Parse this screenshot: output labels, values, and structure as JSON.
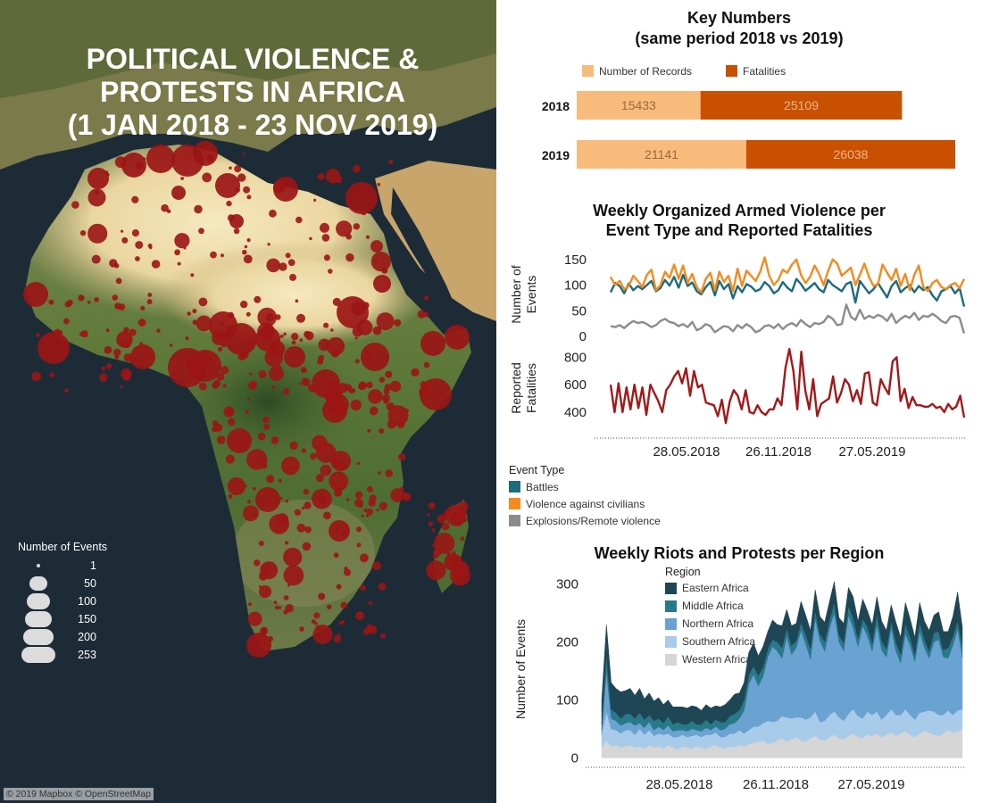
{
  "map": {
    "title_lines": [
      "POLITICAL VIOLENCE &",
      "PROTESTS IN AFRICA",
      "(1 JAN 2018 - 23 NOV 2019)"
    ],
    "legend_title": "Number of Events",
    "legend_sizes": [
      "1",
      "50",
      "100",
      "150",
      "200",
      "253"
    ],
    "credit": "© 2019 Mapbox © OpenStreetMap",
    "colors": {
      "ocean": "#1c2a36",
      "desert": "#efe0b0",
      "vegetation": "#5e7a38",
      "forest": "#2f4f28",
      "dots": "#9b1515",
      "legend_dots": "#dcdcdc"
    }
  },
  "key_numbers": {
    "title_lines": [
      "Key Numbers",
      "(same period 2018 vs 2019)"
    ],
    "legend": [
      {
        "name": "Number of Records",
        "color": "#f9bb7b"
      },
      {
        "name": "Fatalities",
        "color": "#c85000"
      }
    ]
  },
  "armed": {
    "title_lines": [
      "Weekly Organized Armed Violence per",
      "Event Type and Reported Fatalities"
    ],
    "events_axis_label_lines": [
      "Number of",
      "Events"
    ],
    "fatalities_axis_label_lines": [
      "Reported",
      "Fatalities"
    ],
    "legend_title": "Event Type",
    "legend": [
      {
        "name": "Battles",
        "color": "#1e6b7b"
      },
      {
        "name": "Violence against civilians",
        "color": "#f58a1f"
      },
      {
        "name": "Explosions/Remote violence",
        "color": "#8c8c8c"
      }
    ],
    "fatalities_color": "#a11a1a"
  },
  "riots": {
    "title": "Weekly Riots and Protests per Region",
    "legend_title": "Region",
    "legend": [
      {
        "name": "Eastern Africa",
        "color": "#1f4654"
      },
      {
        "name": "Middle Africa",
        "color": "#28798a"
      },
      {
        "name": "Northern Africa",
        "color": "#6aa2d2"
      },
      {
        "name": "Southern Africa",
        "color": "#a9cbea"
      },
      {
        "name": "Western Africa",
        "color": "#d6d6d6"
      }
    ]
  },
  "chart_data": [
    {
      "type": "bar",
      "orientation": "horizontal",
      "stacked": true,
      "categories": [
        "2018",
        "2019"
      ],
      "series": [
        {
          "name": "Number of Records",
          "values": [
            15433,
            21141
          ]
        },
        {
          "name": "Fatalities",
          "values": [
            25109,
            26038
          ]
        }
      ]
    },
    {
      "type": "line",
      "x_ticks": [
        "28.05.2018",
        "26.11.2018",
        "27.05.2019"
      ],
      "ylabel": "Number of Events",
      "y_ticks": [
        0,
        50,
        100,
        150
      ],
      "ylim": [
        0,
        160
      ],
      "series": [
        {
          "name": "Battles",
          "values": [
            86,
            104,
            98,
            84,
            103,
            90,
            98,
            92,
            100,
            108,
            88,
            94,
            110,
            99,
            116,
            95,
            120,
            98,
            105,
            88,
            82,
            96,
            106,
            80,
            108,
            92,
            102,
            74,
            98,
            86,
            102,
            97,
            88,
            92,
            106,
            98,
            84,
            90,
            106,
            95,
            88,
            112,
            102,
            89,
            96,
            104,
            92,
            86,
            110,
            100,
            94,
            88,
            102,
            106,
            66,
            108,
            96,
            84,
            92,
            104,
            90,
            76,
            98,
            108,
            86,
            94,
            100,
            86,
            98,
            90,
            96,
            80,
            70,
            88,
            92,
            98,
            84,
            94,
            58
          ]
        },
        {
          "name": "Violence against civilians",
          "values": [
            116,
            100,
            108,
            92,
            98,
            118,
            108,
            96,
            120,
            130,
            90,
            100,
            126,
            114,
            140,
            112,
            138,
            104,
            122,
            96,
            86,
            112,
            124,
            90,
            126,
            106,
            118,
            88,
            132,
            98,
            128,
            118,
            108,
            126,
            154,
            118,
            100,
            110,
            130,
            124,
            140,
            150,
            120,
            104,
            116,
            138,
            122,
            100,
            128,
            150,
            142,
            118,
            126,
            134,
            100,
            120,
            142,
            116,
            98,
            102,
            140,
            124,
            110,
            132,
            98,
            122,
            90,
            120,
            138,
            96,
            88,
            104,
            110,
            96,
            92,
            100,
            104,
            94,
            112
          ]
        },
        {
          "name": "Explosions/Remote violence",
          "values": [
            20,
            18,
            22,
            16,
            24,
            30,
            26,
            28,
            24,
            18,
            22,
            30,
            34,
            28,
            26,
            20,
            24,
            18,
            28,
            12,
            16,
            24,
            20,
            8,
            14,
            20,
            18,
            10,
            22,
            16,
            24,
            18,
            8,
            12,
            20,
            22,
            16,
            24,
            14,
            22,
            26,
            20,
            32,
            24,
            18,
            26,
            24,
            28,
            40,
            34,
            22,
            24,
            62,
            38,
            32,
            52,
            34,
            40,
            36,
            42,
            38,
            30,
            44,
            26,
            34,
            40,
            36,
            46,
            32,
            40,
            38,
            44,
            38,
            30,
            26,
            38,
            40,
            36,
            6
          ]
        }
      ]
    },
    {
      "type": "line",
      "x_ticks": [
        "28.05.2018",
        "26.11.2018",
        "27.05.2019"
      ],
      "ylabel": "Reported Fatalities",
      "y_ticks": [
        400,
        600,
        800
      ],
      "ylim": [
        250,
        900
      ],
      "series": [
        {
          "name": "Reported Fatalities",
          "values": [
            600,
            400,
            610,
            400,
            580,
            420,
            600,
            430,
            580,
            380,
            600,
            540,
            480,
            400,
            560,
            600,
            660,
            700,
            610,
            720,
            520,
            700,
            580,
            600,
            470,
            460,
            450,
            370,
            490,
            320,
            480,
            560,
            520,
            420,
            560,
            400,
            390,
            450,
            400,
            380,
            420,
            420,
            500,
            450,
            720,
            860,
            700,
            420,
            840,
            560,
            420,
            640,
            370,
            460,
            480,
            500,
            660,
            470,
            540,
            640,
            600,
            480,
            560,
            460,
            680,
            690,
            470,
            450,
            640,
            580,
            530,
            770,
            800,
            480,
            570,
            430,
            510,
            450,
            450,
            440,
            440,
            460,
            430,
            440,
            400,
            460,
            420,
            440,
            520,
            360
          ]
        }
      ]
    },
    {
      "type": "area",
      "stacked": true,
      "x_ticks": [
        "28.05.2018",
        "26.11.2018",
        "27.05.2019"
      ],
      "ylabel": "Number of Events",
      "y_ticks": [
        0,
        100,
        200,
        300
      ],
      "ylim": [
        -10,
        310
      ],
      "series": [
        {
          "name": "Western Africa",
          "values": [
            18,
            30,
            20,
            22,
            18,
            20,
            22,
            18,
            20,
            16,
            22,
            18,
            20,
            16,
            22,
            18,
            14,
            20,
            18,
            16,
            20,
            18,
            16,
            20,
            22,
            18,
            16,
            20,
            18,
            22,
            20,
            24,
            26,
            28,
            30,
            24,
            26,
            30,
            34,
            28,
            32,
            36,
            30,
            28,
            34,
            38,
            32,
            30,
            36,
            40,
            34,
            32,
            38,
            42,
            36,
            34,
            40,
            38,
            42,
            36,
            40,
            44,
            38,
            42,
            46,
            40,
            36,
            42,
            46,
            44,
            40,
            38,
            42,
            48,
            44,
            46,
            50
          ]
        },
        {
          "name": "Southern Africa",
          "values": [
            22,
            50,
            30,
            26,
            24,
            28,
            26,
            22,
            30,
            24,
            26,
            20,
            22,
            24,
            20,
            18,
            22,
            20,
            18,
            22,
            20,
            18,
            24,
            20,
            22,
            18,
            20,
            22,
            24,
            26,
            22,
            24,
            28,
            26,
            30,
            40,
            36,
            34,
            38,
            42,
            36,
            34,
            40,
            38,
            36,
            42,
            30,
            34,
            38,
            40,
            36,
            32,
            38,
            42,
            36,
            34,
            40,
            36,
            38,
            30,
            34,
            40,
            36,
            32,
            38,
            34,
            30,
            36,
            34,
            38,
            40,
            36,
            32,
            34,
            30,
            36,
            34
          ]
        },
        {
          "name": "Northern Africa",
          "values": [
            8,
            70,
            18,
            16,
            14,
            12,
            14,
            16,
            10,
            12,
            14,
            10,
            12,
            8,
            14,
            10,
            12,
            8,
            10,
            12,
            8,
            10,
            12,
            8,
            10,
            12,
            14,
            16,
            18,
            20,
            40,
            80,
            90,
            70,
            80,
            110,
            130,
            120,
            100,
            140,
            110,
            120,
            150,
            130,
            100,
            160,
            140,
            120,
            150,
            170,
            130,
            120,
            170,
            140,
            120,
            160,
            130,
            110,
            150,
            120,
            100,
            140,
            110,
            90,
            130,
            120,
            100,
            140,
            110,
            90,
            120,
            130,
            100,
            90,
            120,
            140,
            90
          ]
        },
        {
          "name": "Middle Africa",
          "values": [
            10,
            30,
            16,
            14,
            12,
            16,
            14,
            12,
            18,
            14,
            12,
            16,
            14,
            12,
            16,
            12,
            14,
            10,
            12,
            14,
            10,
            12,
            14,
            10,
            12,
            14,
            12,
            14,
            16,
            14,
            18,
            16,
            14,
            18,
            16,
            14,
            12,
            16,
            18,
            14,
            16,
            12,
            14,
            16,
            18,
            14,
            12,
            16,
            14,
            18,
            12,
            14,
            16,
            18,
            14,
            12,
            16,
            14,
            18,
            16,
            14,
            12,
            16,
            14,
            18,
            14,
            12,
            16,
            14,
            12,
            16,
            14,
            12,
            18,
            16,
            14,
            22
          ]
        },
        {
          "name": "Eastern Africa",
          "values": [
            42,
            50,
            46,
            42,
            46,
            40,
            44,
            40,
            42,
            36,
            38,
            34,
            36,
            32,
            28,
            30,
            26,
            30,
            28,
            26,
            30,
            24,
            26,
            28,
            24,
            26,
            30,
            28,
            34,
            30,
            30,
            38,
            40,
            34,
            36,
            30,
            34,
            30,
            38,
            32,
            34,
            30,
            36,
            34,
            32,
            36,
            30,
            34,
            32,
            36,
            30,
            34,
            32,
            36,
            30,
            34,
            28,
            32,
            30,
            34,
            32,
            28,
            34,
            30,
            36,
            32,
            30,
            34,
            32,
            36,
            30,
            34,
            32,
            28,
            34,
            50,
            30
          ]
        }
      ]
    }
  ]
}
